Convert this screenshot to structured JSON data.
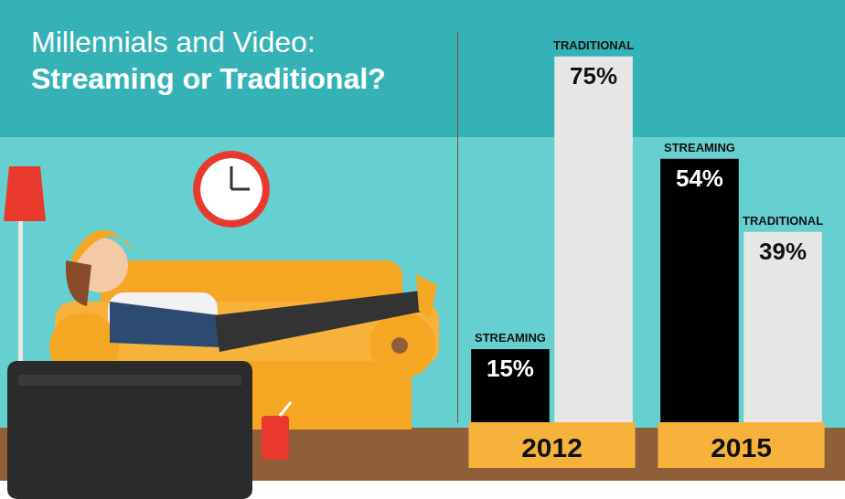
{
  "chart_data": {
    "type": "bar",
    "title": "Millennials and Video:",
    "subtitle": "Streaming or Traditional?",
    "categories": [
      "2012",
      "2015"
    ],
    "series": [
      {
        "name": "STREAMING",
        "color": "#000000",
        "values": [
          15,
          54
        ],
        "value_labels": [
          "15%",
          "54%"
        ]
      },
      {
        "name": "TRADITIONAL",
        "color": "#e6e6e6",
        "values": [
          75,
          39
        ],
        "value_labels": [
          "75%",
          "39%"
        ]
      }
    ],
    "ylim": [
      0,
      80
    ],
    "grid": false,
    "data_labels": true,
    "tick_labels": "x"
  }
}
